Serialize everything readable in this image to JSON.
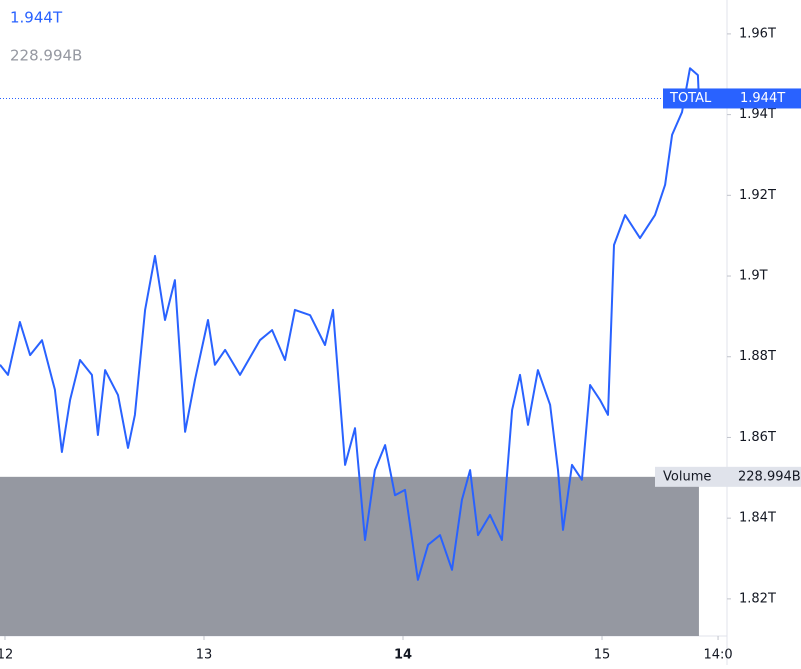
{
  "chart_data": {
    "type": "line",
    "last_price": {
      "value": 1.944,
      "label": "1.944T"
    },
    "volume": {
      "name": "Volume",
      "value": 228.994,
      "label": "228.994B",
      "color": "#9598a1"
    },
    "vlim": [
      0,
      915
    ],
    "x": [
      11.975,
      12.015,
      12.075,
      12.126,
      12.186,
      12.251,
      12.286,
      12.327,
      12.377,
      12.437,
      12.467,
      12.503,
      12.568,
      12.618,
      12.653,
      12.704,
      12.754,
      12.804,
      12.854,
      12.905,
      12.955,
      13.02,
      13.055,
      13.106,
      13.181,
      13.281,
      13.342,
      13.407,
      13.457,
      13.533,
      13.608,
      13.648,
      13.709,
      13.759,
      13.809,
      13.859,
      13.91,
      13.96,
      14.01,
      14.075,
      14.126,
      14.186,
      14.246,
      14.296,
      14.337,
      14.377,
      14.437,
      14.497,
      14.548,
      14.588,
      14.628,
      14.678,
      14.739,
      14.779,
      14.804,
      14.849,
      14.899,
      14.94,
      14.99,
      15.03,
      15.06,
      15.116,
      15.191,
      15.266,
      15.317,
      15.352,
      15.402,
      15.442,
      15.482,
      15.487
    ],
    "series": [
      {
        "name": "TOTAL",
        "color": "#2962ff",
        "values": [
          1.878,
          1.8755,
          1.8886,
          1.8804,
          1.8841,
          1.8718,
          1.8564,
          1.8693,
          1.8792,
          1.8755,
          1.8606,
          1.8767,
          1.8705,
          1.8574,
          1.8656,
          1.8916,
          1.905,
          1.8891,
          1.899,
          1.8614,
          1.8743,
          1.8891,
          1.878,
          1.8817,
          1.8755,
          1.8841,
          1.8866,
          1.8792,
          1.8916,
          1.8903,
          1.8829,
          1.8916,
          1.8532,
          1.8623,
          1.8346,
          1.8519,
          1.8581,
          1.8457,
          1.847,
          1.8247,
          1.8334,
          1.8358,
          1.8272,
          1.8445,
          1.8519,
          1.8358,
          1.8408,
          1.8346,
          1.8668,
          1.8755,
          1.8631,
          1.8767,
          1.8681,
          1.8519,
          1.8371,
          1.8532,
          1.8495,
          1.873,
          1.8693,
          1.8656,
          1.9077,
          1.9151,
          1.9094,
          1.9151,
          1.9226,
          1.935,
          1.9406,
          1.9515,
          1.9498,
          1.944
        ]
      }
    ],
    "xlim": [
      11.975,
      15.628
    ],
    "xticks": [
      12,
      13,
      14,
      15,
      {
        "value": 15.583,
        "label": "14:0"
      }
    ],
    "ylim": [
      1.8108,
      1.9684
    ],
    "yticks": [
      {
        "value": 1.96,
        "label": "1.96T"
      },
      {
        "value": 1.94,
        "label": "1.94T"
      },
      {
        "value": 1.92,
        "label": "1.92T"
      },
      {
        "value": 1.9,
        "label": "1.9T"
      },
      {
        "value": 1.88,
        "label": "1.88T"
      },
      {
        "value": 1.86,
        "label": "1.86T"
      },
      {
        "value": 1.84,
        "label": "1.84T"
      },
      {
        "value": 1.82,
        "label": "1.82T"
      }
    ]
  }
}
